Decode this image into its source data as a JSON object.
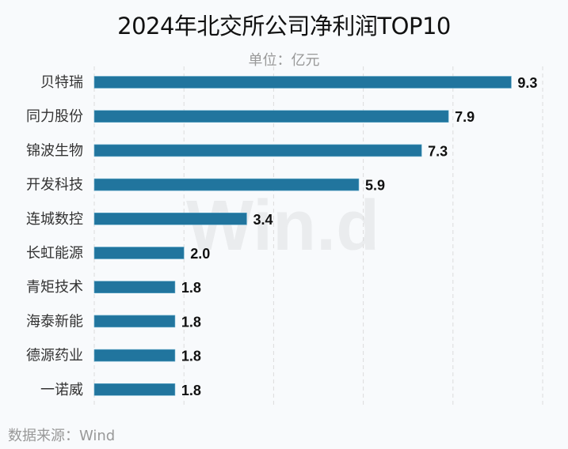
{
  "chart_data": {
    "type": "bar",
    "orientation": "horizontal",
    "title": "2024年北交所公司净利润TOP10",
    "unit_label": "单位：亿元",
    "source": "数据来源：Wind",
    "watermark": "Win.d",
    "categories": [
      "贝特瑞",
      "同力股份",
      "锦波生物",
      "开发科技",
      "连城数控",
      "长虹能源",
      "青矩技术",
      "海泰新能",
      "德源药业",
      "一诺威"
    ],
    "values": [
      9.3,
      7.9,
      7.3,
      5.9,
      3.4,
      2.0,
      1.8,
      1.8,
      1.8,
      1.8
    ],
    "data_labels": [
      "9.3",
      "7.9",
      "7.3",
      "5.9",
      "3.4",
      "2.0",
      "1.8",
      "1.8",
      "1.8",
      "1.8"
    ],
    "xlim": [
      0,
      10
    ],
    "grid_step": 2,
    "grid": true,
    "x_tick_labels_visible": false,
    "bar_color": "#21759e"
  }
}
